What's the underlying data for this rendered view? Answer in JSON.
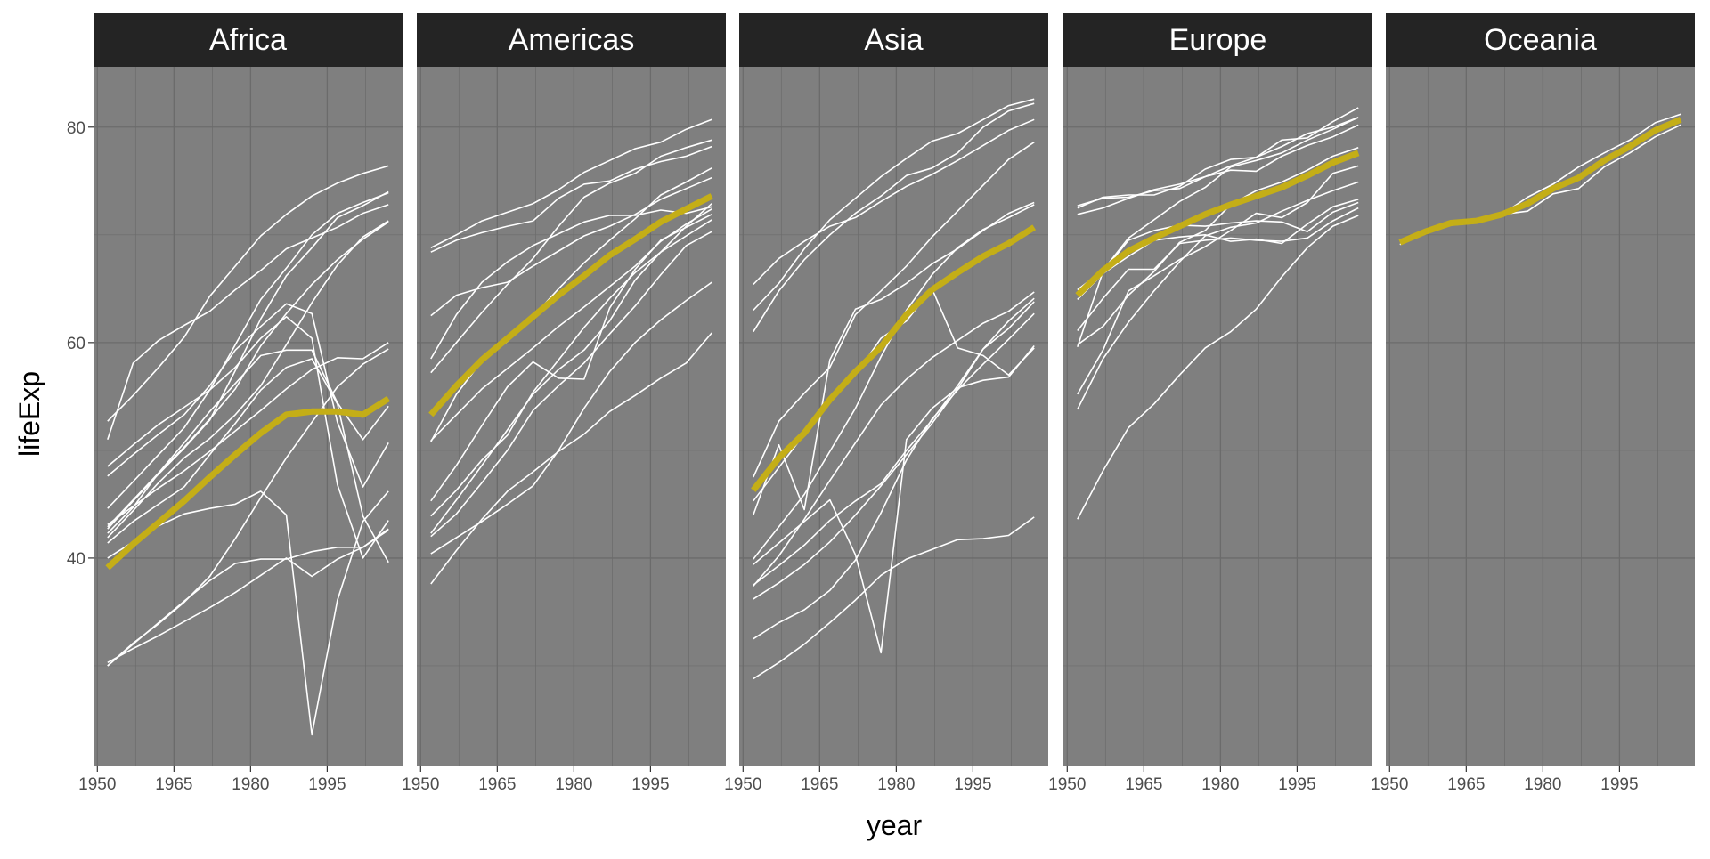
{
  "chart_data": {
    "type": "line",
    "xlabel": "year",
    "ylabel": "lifeExp",
    "xlim": [
      1949.25,
      2009.75
    ],
    "ylim": [
      20.66,
      85.6
    ],
    "x_ticks": [
      1950,
      1965,
      1980,
      1995
    ],
    "y_ticks": [
      40,
      60,
      80
    ],
    "grid": true,
    "colors": {
      "panel_bg": "#7f7f7f",
      "grid": "#6b6b6b",
      "strip_bg": "#242424",
      "country_line": "#ffffff",
      "mean_line": "#c4ae17"
    },
    "years": [
      1952,
      1957,
      1962,
      1967,
      1972,
      1977,
      1982,
      1987,
      1992,
      1997,
      2002,
      2007
    ],
    "facets": [
      {
        "name": "Africa",
        "mean": [
          39.1,
          41.3,
          43.3,
          45.3,
          47.5,
          49.6,
          51.6,
          53.3,
          53.6,
          53.6,
          53.3,
          54.8
        ],
        "countries": [
          [
            40,
            41.5,
            43,
            44.1,
            44.6,
            45,
            46.2,
            44.0,
            23.6,
            36.1,
            43.4,
            46.2
          ],
          [
            30.3,
            31.6,
            32.8,
            34.1,
            35.4,
            36.8,
            38.4,
            40.0,
            38.3,
            39.9,
            41.0,
            42.6
          ],
          [
            52.7,
            55.1,
            57.7,
            60.5,
            64.3,
            67.1,
            69.9,
            71.9,
            73.6,
            74.8,
            75.7,
            76.4
          ],
          [
            44.6,
            47.1,
            49.6,
            52.1,
            55.6,
            59.8,
            64.0,
            66.9,
            70.0,
            72.0,
            73.0,
            73.9
          ],
          [
            48.5,
            50.5,
            52.4,
            54.0,
            55.6,
            57.7,
            60.4,
            62.4,
            60.4,
            46.8,
            40.0,
            43.5
          ],
          [
            47.6,
            49.6,
            51.5,
            53.3,
            56.0,
            59.3,
            61.5,
            63.6,
            62.7,
            52.6,
            46.6,
            50.7
          ],
          [
            41.4,
            43.4,
            45.0,
            46.6,
            49.6,
            52.5,
            55.6,
            57.7,
            58.5,
            54.3,
            43.9,
            39.6
          ],
          [
            41.9,
            44.4,
            47.0,
            49.3,
            51.1,
            53.3,
            56.0,
            59.8,
            63.7,
            67.2,
            69.8,
            71.3
          ],
          [
            42.9,
            45.4,
            47.9,
            50.3,
            52.9,
            55.7,
            59.7,
            62.7,
            65.4,
            67.7,
            69.6,
            71.2
          ],
          [
            30.0,
            32.0,
            34.0,
            36.0,
            37.9,
            39.5,
            39.9,
            39.9,
            40.6,
            41.0,
            41.0,
            42.7
          ],
          [
            51.0,
            58.1,
            60.2,
            61.6,
            62.9,
            64.9,
            66.7,
            68.7,
            69.7,
            70.7,
            72.0,
            72.8
          ],
          [
            30.0,
            32.1,
            33.9,
            35.9,
            38.3,
            41.8,
            45.6,
            49.3,
            52.6,
            55.9,
            58.0,
            59.4
          ],
          [
            43.1,
            44.8,
            46.5,
            48.1,
            49.9,
            51.8,
            53.7,
            55.7,
            57.5,
            58.6,
            58.5,
            60.0
          ],
          [
            42.3,
            44.7,
            47.9,
            50.7,
            53.6,
            56.2,
            58.8,
            59.3,
            59.3,
            54.4,
            51.0,
            54.1
          ],
          [
            42.7,
            45.3,
            47.8,
            50.2,
            52.8,
            57.4,
            62.2,
            66.2,
            68.8,
            71.6,
            72.7,
            74.0
          ]
        ]
      },
      {
        "name": "Americas",
        "mean": [
          53.3,
          56.0,
          58.4,
          60.4,
          62.4,
          64.4,
          66.2,
          68.1,
          69.6,
          71.2,
          72.4,
          73.6
        ],
        "countries": [
          [
            37.6,
            40.7,
            43.6,
            46.2,
            48.0,
            49.9,
            51.5,
            53.6,
            55.1,
            56.7,
            58.1,
            60.9
          ],
          [
            40.4,
            41.9,
            43.4,
            45.0,
            46.7,
            50.0,
            53.9,
            57.3,
            60.0,
            62.1,
            63.9,
            65.6
          ],
          [
            68.8,
            70.0,
            71.3,
            72.1,
            72.9,
            74.2,
            75.8,
            76.9,
            78.0,
            78.6,
            79.8,
            80.7
          ],
          [
            68.4,
            69.5,
            70.2,
            70.8,
            71.3,
            73.4,
            74.7,
            75.0,
            76.1,
            76.8,
            77.3,
            78.2
          ],
          [
            42.3,
            45.4,
            48.6,
            51.9,
            55.2,
            57.5,
            59.3,
            62.0,
            65.8,
            68.4,
            70.8,
            72.9
          ],
          [
            42.0,
            44.1,
            47.0,
            50.0,
            53.7,
            56.0,
            58.1,
            60.8,
            63.4,
            66.3,
            69.0,
            70.3
          ],
          [
            45.3,
            48.6,
            52.3,
            55.9,
            58.2,
            56.7,
            56.6,
            63.2,
            66.8,
            69.5,
            70.7,
            71.9
          ],
          [
            57.2,
            60.0,
            62.8,
            65.4,
            67.8,
            70.8,
            73.5,
            74.8,
            75.7,
            77.3,
            78.1,
            78.8
          ],
          [
            50.9,
            53.3,
            55.7,
            57.6,
            59.5,
            61.5,
            63.3,
            65.2,
            67.1,
            69.4,
            71.0,
            72.4
          ],
          [
            50.8,
            55.2,
            58.3,
            60.1,
            62.4,
            65.0,
            67.4,
            69.5,
            71.5,
            73.7,
            74.9,
            76.2
          ],
          [
            43.9,
            46.3,
            49.1,
            51.4,
            55.4,
            58.4,
            61.4,
            64.1,
            66.5,
            68.4,
            69.9,
            71.4
          ],
          [
            58.5,
            62.6,
            65.6,
            67.5,
            69.0,
            70.1,
            71.2,
            71.8,
            71.8,
            72.3,
            72.0,
            72.6
          ],
          [
            62.5,
            64.4,
            65.1,
            65.6,
            67.1,
            68.5,
            69.9,
            70.8,
            71.9,
            73.3,
            74.3,
            75.3
          ]
        ]
      },
      {
        "name": "Asia",
        "mean": [
          46.3,
          49.3,
          51.6,
          54.7,
          57.3,
          59.6,
          62.6,
          64.9,
          66.5,
          68.0,
          69.2,
          70.7
        ],
        "countries": [
          [
            28.8,
            30.3,
            32.0,
            34.0,
            36.1,
            38.4,
            39.9,
            40.8,
            41.7,
            41.8,
            42.1,
            43.8
          ],
          [
            39.4,
            41.4,
            43.4,
            45.4,
            40.3,
            31.2,
            51.0,
            53.9,
            55.8,
            56.5,
            56.8,
            59.7
          ],
          [
            63.0,
            65.5,
            68.7,
            71.4,
            73.4,
            75.4,
            77.1,
            78.7,
            79.4,
            80.7,
            82.0,
            82.6
          ],
          [
            65.4,
            67.8,
            69.4,
            70.8,
            71.6,
            73.1,
            74.5,
            75.6,
            76.9,
            78.3,
            79.7,
            80.7
          ],
          [
            44.0,
            50.5,
            44.5,
            58.4,
            63.1,
            64.0,
            65.5,
            67.3,
            68.7,
            70.4,
            72.0,
            73.0
          ],
          [
            37.4,
            40.2,
            43.6,
            47.2,
            50.7,
            54.2,
            56.6,
            58.6,
            60.2,
            61.8,
            62.9,
            64.7
          ],
          [
            32.5,
            34.0,
            35.2,
            37.0,
            39.8,
            44.2,
            49.1,
            52.9,
            55.6,
            58.0,
            60.3,
            62.7
          ],
          [
            45.3,
            48.4,
            51.5,
            54.5,
            57.0,
            60.4,
            62.0,
            65.0,
            59.5,
            58.8,
            57.0,
            59.5
          ],
          [
            47.5,
            52.7,
            55.3,
            57.7,
            62.6,
            64.8,
            67.1,
            69.8,
            72.2,
            74.6,
            77.0,
            78.6
          ],
          [
            61.0,
            64.8,
            67.7,
            70.0,
            72.0,
            73.6,
            75.5,
            76.2,
            77.6,
            80.0,
            81.5,
            82.2
          ],
          [
            36.2,
            37.7,
            39.4,
            41.5,
            44.0,
            46.7,
            49.6,
            52.5,
            55.7,
            59.4,
            61.3,
            63.8
          ],
          [
            39.9,
            42.9,
            45.9,
            49.9,
            53.9,
            58.7,
            63.0,
            66.3,
            68.8,
            70.5,
            71.6,
            72.8
          ],
          [
            37.5,
            39.3,
            41.2,
            43.5,
            45.3,
            46.9,
            50.0,
            52.8,
            56.0,
            59.4,
            62.0,
            64.1
          ]
        ]
      },
      {
        "name": "Europe",
        "mean": [
          64.4,
          66.7,
          68.5,
          69.7,
          70.8,
          71.9,
          72.8,
          73.6,
          74.4,
          75.5,
          76.7,
          77.6
        ],
        "countries": [
          [
            43.6,
            48.1,
            52.1,
            54.3,
            57.0,
            59.5,
            61.0,
            63.1,
            66.1,
            68.8,
            70.8,
            71.8
          ],
          [
            72.5,
            73.5,
            73.7,
            73.7,
            74.5,
            76.1,
            77.0,
            77.2,
            78.8,
            79.0,
            80.5,
            81.8
          ],
          [
            72.7,
            73.4,
            73.5,
            74.1,
            74.3,
            75.4,
            76.0,
            75.9,
            77.3,
            78.3,
            79.1,
            80.2
          ],
          [
            59.8,
            61.5,
            64.4,
            66.6,
            69.3,
            70.4,
            72.8,
            74.1,
            74.9,
            76.0,
            77.3,
            78.1
          ],
          [
            53.8,
            58.5,
            61.9,
            64.8,
            67.5,
            69.9,
            70.7,
            71.1,
            72.2,
            73.2,
            74.1,
            74.9
          ],
          [
            55.2,
            59.3,
            64.8,
            66.2,
            67.7,
            68.9,
            70.4,
            72.0,
            71.6,
            73.0,
            75.7,
            76.4
          ],
          [
            64.0,
            66.4,
            68.0,
            69.5,
            69.8,
            70.0,
            69.4,
            69.6,
            69.2,
            71.0,
            72.6,
            73.3
          ],
          [
            59.6,
            66.6,
            69.5,
            70.4,
            70.9,
            70.8,
            71.1,
            71.3,
            71.2,
            70.3,
            72.1,
            73.0
          ],
          [
            71.9,
            72.5,
            73.4,
            74.2,
            74.7,
            75.4,
            76.4,
            77.2,
            78.2,
            79.4,
            80.0,
            80.9
          ],
          [
            64.9,
            66.7,
            69.7,
            71.4,
            73.1,
            74.4,
            76.3,
            76.9,
            77.6,
            78.8,
            79.8,
            80.9
          ],
          [
            61.1,
            64.1,
            66.8,
            66.8,
            69.2,
            69.5,
            69.7,
            69.5,
            69.4,
            69.7,
            71.3,
            72.5
          ]
        ]
      },
      {
        "name": "Oceania",
        "mean": [
          69.3,
          70.3,
          71.1,
          71.3,
          71.9,
          72.9,
          74.3,
          75.3,
          76.9,
          78.2,
          79.7,
          80.7
        ],
        "countries": [
          [
            69.1,
            70.3,
            70.9,
            71.1,
            71.9,
            73.5,
            74.7,
            76.3,
            77.6,
            78.8,
            80.4,
            81.2
          ],
          [
            69.4,
            70.3,
            71.2,
            71.5,
            71.9,
            72.2,
            73.8,
            74.3,
            76.3,
            77.6,
            79.1,
            80.2
          ]
        ]
      }
    ]
  }
}
